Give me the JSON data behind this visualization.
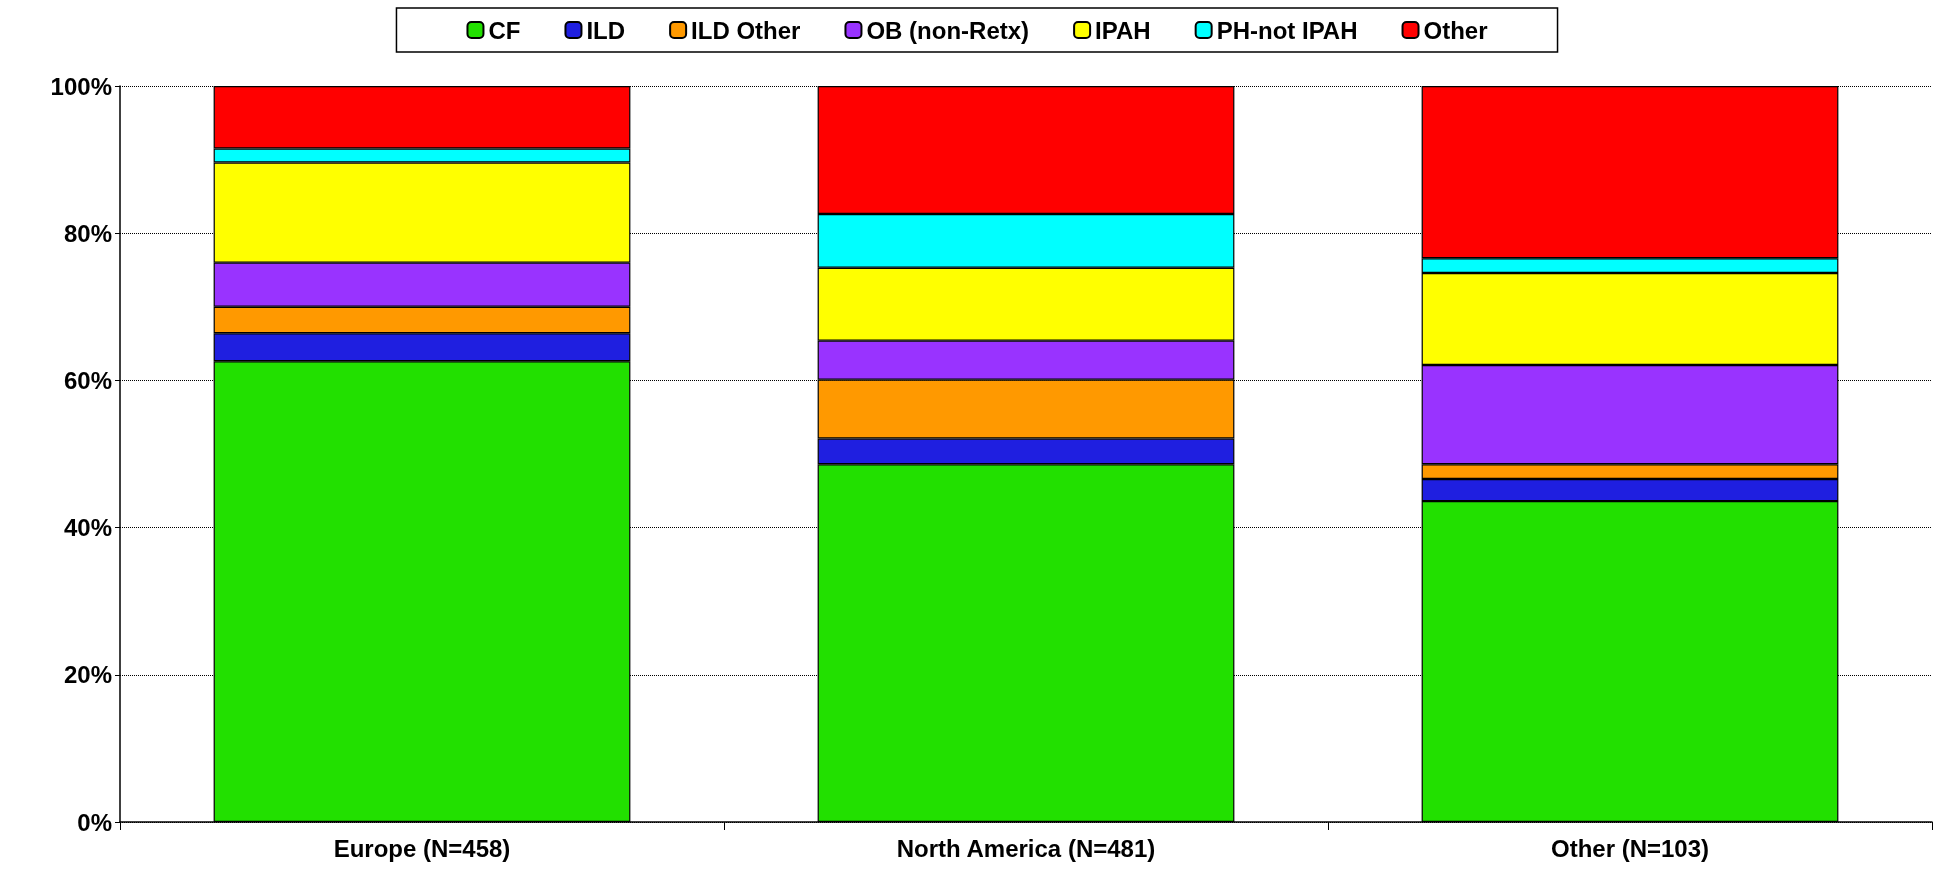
{
  "chart_data": {
    "type": "bar",
    "stacked": true,
    "categories": [
      "Europe (N=458)",
      "North America (N=481)",
      "Other (N=103)"
    ],
    "series": [
      {
        "name": "CF",
        "color": "#22e000",
        "values": [
          62.6,
          48.6,
          43.6
        ]
      },
      {
        "name": "ILD",
        "color": "#1f1fe0",
        "values": [
          3.8,
          3.5,
          3.0
        ]
      },
      {
        "name": "ILD Other",
        "color": "#ff9900",
        "values": [
          3.6,
          8.0,
          2.0
        ]
      },
      {
        "name": "OB (non-Retx)",
        "color": "#9933ff",
        "values": [
          6.0,
          5.3,
          13.5
        ]
      },
      {
        "name": "IPAH",
        "color": "#ffff00",
        "values": [
          13.6,
          9.9,
          12.5
        ]
      },
      {
        "name": "PH-not IPAH",
        "color": "#00ffff",
        "values": [
          1.9,
          7.3,
          2.0
        ]
      },
      {
        "name": "Other",
        "color": "#ff0000",
        "values": [
          8.5,
          17.4,
          23.4
        ]
      }
    ],
    "ylim": [
      0,
      100
    ],
    "yticks": [
      {
        "value": 0,
        "label": "0%"
      },
      {
        "value": 20,
        "label": "20%"
      },
      {
        "value": 40,
        "label": "40%"
      },
      {
        "value": 60,
        "label": "60%"
      },
      {
        "value": 80,
        "label": "80%"
      },
      {
        "value": 100,
        "label": "100%"
      }
    ],
    "grid": "y",
    "legend": "top"
  }
}
